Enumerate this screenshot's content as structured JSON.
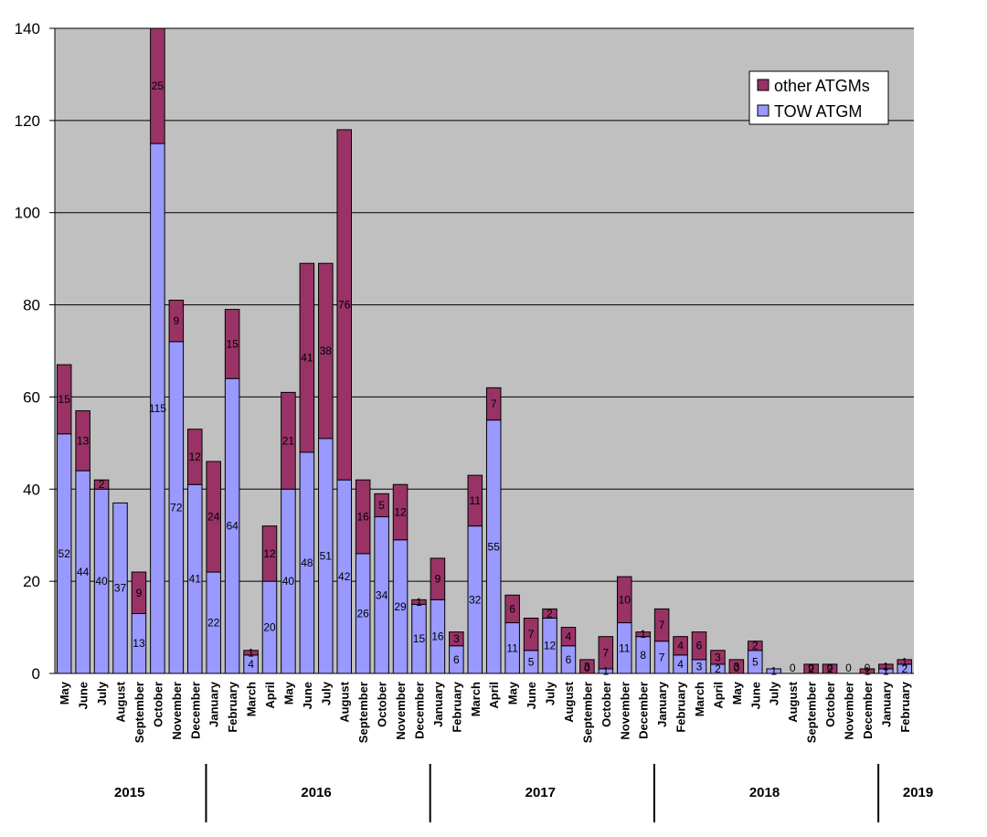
{
  "chart_data": {
    "type": "bar",
    "stacked": true,
    "categories": [
      "May",
      "June",
      "July",
      "August",
      "September",
      "October",
      "November",
      "December",
      "January",
      "February",
      "March",
      "April",
      "May",
      "June",
      "July",
      "August",
      "September",
      "October",
      "November",
      "December",
      "January",
      "February",
      "March",
      "April",
      "May",
      "June",
      "July",
      "August",
      "September",
      "October",
      "November",
      "December",
      "January",
      "February",
      "March",
      "April",
      "May",
      "June",
      "July",
      "August",
      "September",
      "October",
      "November",
      "December",
      "January",
      "February"
    ],
    "years": [
      {
        "label": "2015",
        "start": 0,
        "end": 7
      },
      {
        "label": "2016",
        "start": 8,
        "end": 19
      },
      {
        "label": "2017",
        "start": 20,
        "end": 31
      },
      {
        "label": "2018",
        "start": 32,
        "end": 43
      },
      {
        "label": "2019",
        "start": 44,
        "end": 45
      }
    ],
    "series": [
      {
        "name": "TOW ATGM",
        "color": "#9999ff",
        "values": [
          52,
          44,
          40,
          37,
          13,
          115,
          72,
          41,
          22,
          64,
          4,
          20,
          40,
          48,
          51,
          42,
          26,
          34,
          29,
          15,
          16,
          6,
          32,
          55,
          11,
          5,
          12,
          6,
          0,
          1,
          11,
          8,
          7,
          4,
          3,
          2,
          0,
          5,
          1,
          0,
          0,
          0,
          0,
          0,
          1,
          2
        ]
      },
      {
        "name": "other ATGMs",
        "color": "#993366",
        "values": [
          15,
          13,
          2,
          0,
          9,
          25,
          9,
          12,
          24,
          15,
          1,
          12,
          21,
          41,
          38,
          76,
          16,
          5,
          12,
          1,
          9,
          3,
          11,
          7,
          6,
          7,
          2,
          4,
          3,
          7,
          10,
          1,
          7,
          4,
          6,
          3,
          3,
          2,
          0,
          0,
          2,
          2,
          0,
          1,
          1,
          1
        ]
      }
    ],
    "ylim": [
      0,
      140
    ],
    "yticks": [
      "0",
      "20",
      "40",
      "60",
      "80",
      "100",
      "120",
      "140"
    ],
    "grid": true,
    "legend_position": "top-right",
    "colors": {
      "plot_background": "#c0c0c0",
      "gridline": "#000000"
    }
  }
}
